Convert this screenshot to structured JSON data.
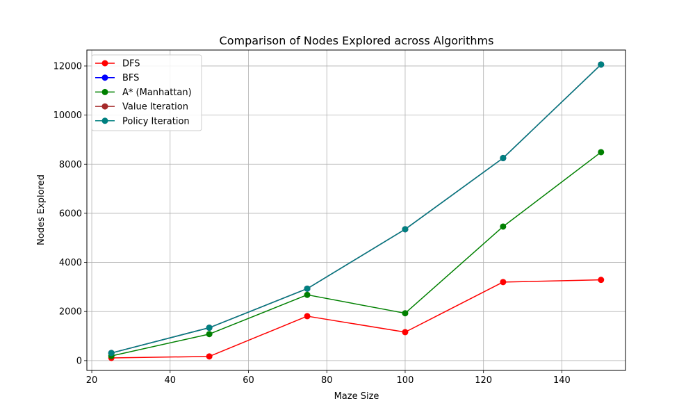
{
  "chart_data": {
    "type": "line",
    "title": "Comparison of Nodes Explored across Algorithms",
    "xlabel": "Maze Size",
    "ylabel": "Nodes Explored",
    "x": [
      25,
      50,
      75,
      100,
      125,
      150
    ],
    "xlim": [
      18.75,
      156.25
    ],
    "ylim": [
      -400,
      12650
    ],
    "xticks": [
      20,
      40,
      60,
      80,
      100,
      120,
      140
    ],
    "yticks": [
      0,
      2000,
      4000,
      6000,
      8000,
      10000,
      12000
    ],
    "grid": true,
    "legend_position": "upper-left",
    "series": [
      {
        "name": "DFS",
        "color": "#ff0000",
        "values": [
          110,
          170,
          1810,
          1160,
          3200,
          3290
        ]
      },
      {
        "name": "BFS",
        "color": "#0000ff",
        "values": [
          310,
          1340,
          2930,
          5350,
          8250,
          12060
        ]
      },
      {
        "name": "A* (Manhattan)",
        "color": "#008000",
        "values": [
          190,
          1080,
          2680,
          1930,
          5460,
          8490
        ]
      },
      {
        "name": "Value Iteration",
        "color": "#a52a2a",
        "values": [
          310,
          1340,
          2930,
          5350,
          8250,
          12060
        ]
      },
      {
        "name": "Policy Iteration",
        "color": "#008080",
        "values": [
          310,
          1340,
          2930,
          5350,
          8250,
          12060
        ]
      }
    ]
  }
}
